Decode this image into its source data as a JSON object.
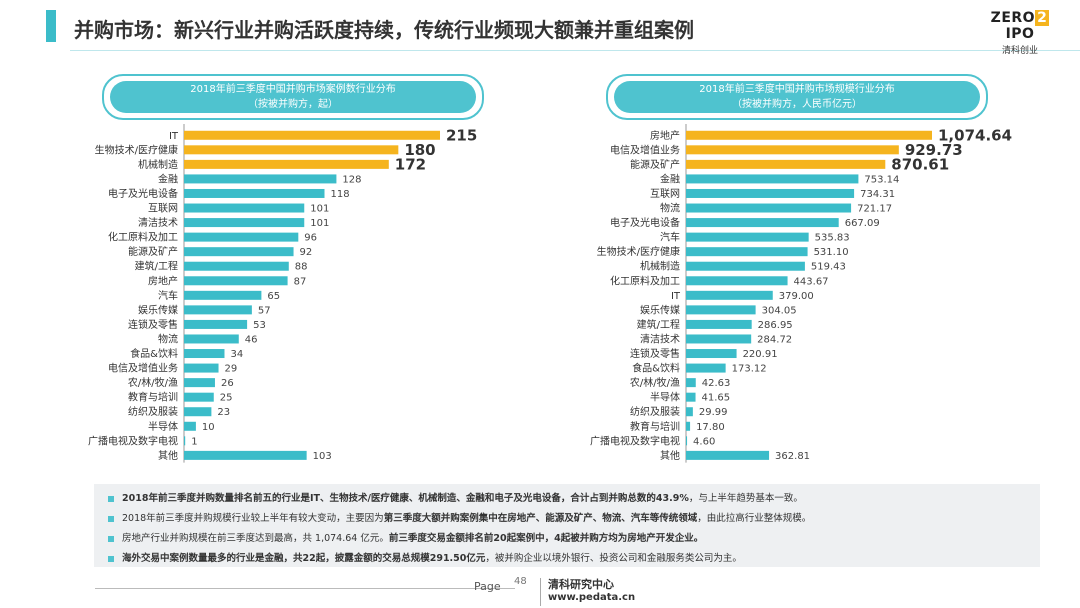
{
  "header": {
    "title": "并购市场：新兴行业并购活跃度持续，传统行业频现大额兼并重组案例",
    "logo_main_left": "ZERO",
    "logo_main_mid": "2",
    "logo_main_right": "IPO",
    "logo_sub": "清科创业"
  },
  "colors": {
    "accent": "#3bbcc9",
    "bar": "#3bbcc9",
    "highlight": "#f5b41e"
  },
  "chart_data": [
    {
      "type": "bar",
      "orientation": "horizontal",
      "title_line1": "2018年前三季度中国并购市场案例数行业分布",
      "title_line2": "（按被并购方，起）",
      "categories": [
        "IT",
        "生物技术/医疗健康",
        "机械制造",
        "金融",
        "电子及光电设备",
        "互联网",
        "清洁技术",
        "化工原料及加工",
        "能源及矿产",
        "建筑/工程",
        "房地产",
        "汽车",
        "娱乐传媒",
        "连锁及零售",
        "物流",
        "食品&饮料",
        "电信及增值业务",
        "农/林/牧/渔",
        "教育与培训",
        "纺织及服装",
        "半导体",
        "广播电视及数字电视",
        "其他"
      ],
      "values": [
        215,
        180,
        172,
        128,
        118,
        101,
        101,
        96,
        92,
        88,
        87,
        65,
        57,
        53,
        46,
        34,
        29,
        26,
        25,
        23,
        10,
        1,
        103
      ],
      "value_labels": [
        "215",
        "180",
        "172",
        "128",
        "118",
        "101",
        "101",
        "96",
        "92",
        "88",
        "87",
        "65",
        "57",
        "53",
        "46",
        "34",
        "29",
        "26",
        "25",
        "23",
        "10",
        "1",
        "103"
      ],
      "highlight_top": 3,
      "xlim": [
        0,
        215
      ]
    },
    {
      "type": "bar",
      "orientation": "horizontal",
      "title_line1": "2018年前三季度中国并购市场规模行业分布",
      "title_line2": "（按被并购方，人民币亿元）",
      "categories": [
        "房地产",
        "电信及增值业务",
        "能源及矿产",
        "金融",
        "互联网",
        "物流",
        "电子及光电设备",
        "汽车",
        "生物技术/医疗健康",
        "机械制造",
        "化工原料及加工",
        "IT",
        "娱乐传媒",
        "建筑/工程",
        "清洁技术",
        "连锁及零售",
        "食品&饮料",
        "农/林/牧/渔",
        "半导体",
        "纺织及服装",
        "教育与培训",
        "广播电视及数字电视",
        "其他"
      ],
      "values": [
        1074.64,
        929.73,
        870.61,
        753.14,
        734.31,
        721.17,
        667.09,
        535.83,
        531.1,
        519.43,
        443.67,
        379.0,
        304.05,
        286.95,
        284.72,
        220.91,
        173.12,
        42.63,
        41.65,
        29.99,
        17.8,
        4.6,
        362.81
      ],
      "value_labels": [
        "1,074.64",
        "929.73",
        "870.61",
        "753.14",
        "734.31",
        "721.17",
        "667.09",
        "535.83",
        "531.10",
        "519.43",
        "443.67",
        "379.00",
        "304.05",
        "286.95",
        "284.72",
        "220.91",
        "173.12",
        "42.63",
        "41.65",
        "29.99",
        "17.80",
        "4.60",
        "362.81"
      ],
      "highlight_top": 3,
      "xlim": [
        0,
        1074.64
      ]
    }
  ],
  "notes": [
    {
      "pre": "2018年前三季度并购数量排名前五的行业是IT、生物技术/医疗健康、机械制造、金融和电子及光电设备，合计占到并购总数的43.9%",
      "post": "，与上半年趋势基本一致。"
    },
    {
      "pre": "2018年前三季度并购规模行业较上半年有较大变动，主要因为",
      "bold": "第三季度大额并购案例集中在房地产、能源及矿产、物流、汽车等传统领域",
      "post": "，由此拉高行业整体规模。"
    },
    {
      "pre": "房地产行业并购规模在前三季度达到最高，共 1,074.64 亿元。",
      "bold": "前三季度交易金额排名前20起案例中，4起被并购方均为房地产开发企业。",
      "post": ""
    },
    {
      "pre": "海外交易中案例数量最多的行业是金融，共22起，披露金额的交易总规模291.50亿元",
      "post": "，被并购企业以境外银行、投资公司和金融服务类公司为主。"
    }
  ],
  "footer": {
    "page_label": "Page",
    "page_number": "48",
    "center_name": "清科研究中心",
    "center_url": "www.pedata.cn"
  }
}
